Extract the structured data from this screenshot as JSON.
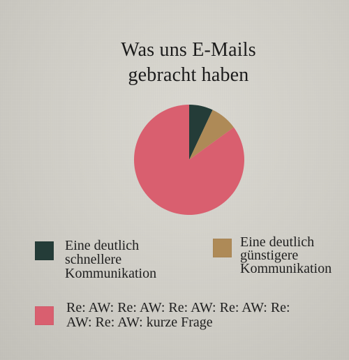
{
  "chart_data": {
    "type": "pie",
    "title": [
      "Was uns E-Mails",
      "gebracht haben"
    ],
    "slices": [
      {
        "label": "Eine deutlich\nschnellere\nKommunikation",
        "value": 7,
        "color": "#243c38"
      },
      {
        "label": "Eine deutlich\ngünstigere\nKommunikation",
        "value": 8,
        "color": "#ae8a57"
      },
      {
        "label": "Re: AW: Re: AW: Re: AW: Re: AW: Re:\nAW: Re: AW: kurze Frage",
        "value": 85,
        "color": "#d95f6f"
      }
    ],
    "legend_position": "bottom"
  }
}
